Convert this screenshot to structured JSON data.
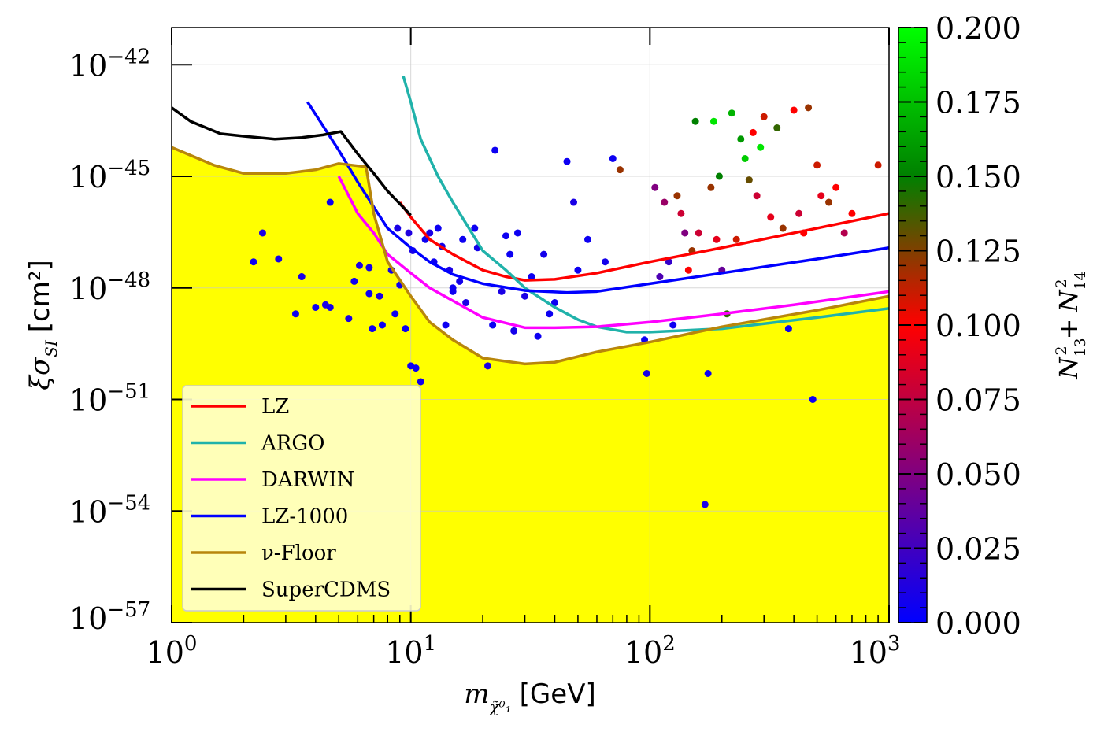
{
  "chart_data": {
    "type": "scatter",
    "title": "",
    "xlabel": {
      "base": "m",
      "sub": "χ̃⁰₁",
      "unit": "[GeV]"
    },
    "ylabel": {
      "base": "ξσ",
      "sub": "SI",
      "unit": "[cm²]"
    },
    "x_scale": "log",
    "y_scale": "log",
    "xlim": [
      1,
      1000
    ],
    "ylim": [
      1e-57,
      1e-41
    ],
    "grid": true,
    "x_ticks": [
      {
        "value": 1,
        "base": "10",
        "exp": "0"
      },
      {
        "value": 10,
        "base": "10",
        "exp": "1"
      },
      {
        "value": 100,
        "base": "10",
        "exp": "2"
      },
      {
        "value": 1000,
        "base": "10",
        "exp": "3"
      }
    ],
    "y_ticks": [
      {
        "value": 1e-57,
        "base": "10",
        "exp": "−57"
      },
      {
        "value": 1e-54,
        "base": "10",
        "exp": "−54"
      },
      {
        "value": 1e-51,
        "base": "10",
        "exp": "−51"
      },
      {
        "value": 1e-48,
        "base": "10",
        "exp": "−48"
      },
      {
        "value": 1e-45,
        "base": "10",
        "exp": "−45"
      },
      {
        "value": 1e-42,
        "base": "10",
        "exp": "−42"
      }
    ],
    "fill": {
      "color": "#ffff00",
      "under": "ν-Floor"
    },
    "legend": {
      "position": "lower-left",
      "entries": [
        {
          "label": "LZ",
          "color": "#ff0000"
        },
        {
          "label": "ARGO",
          "color": "#20b2aa"
        },
        {
          "label": "DARWIN",
          "color": "#ff00ff"
        },
        {
          "label": "LZ-1000",
          "color": "#0000ff"
        },
        {
          "label": "ν-Floor",
          "color": "#b8860b"
        },
        {
          "label": "SuperCDMS",
          "color": "#000000"
        }
      ]
    },
    "series": [
      {
        "name": "LZ",
        "color": "#ff0000",
        "x": [
          9,
          10,
          12,
          15,
          20,
          25,
          30,
          40,
          60,
          100,
          200,
          400,
          1000
        ],
        "y": [
          2e-46,
          8e-47,
          2e-47,
          8e-48,
          3e-48,
          2e-48,
          1.6e-48,
          1.7e-48,
          2.5e-48,
          5e-48,
          1.2e-47,
          3e-47,
          1e-46
        ]
      },
      {
        "name": "ARGO",
        "color": "#20b2aa",
        "x": [
          9.3,
          10,
          11,
          13,
          15,
          18,
          20,
          25,
          30,
          40,
          50,
          60,
          80,
          100,
          200,
          500,
          1000
        ],
        "y": [
          5e-43,
          1e-43,
          1e-44,
          1e-45,
          2e-46,
          3e-47,
          1e-47,
          3e-48,
          1e-48,
          3e-49,
          1.4e-49,
          9e-50,
          6.5e-50,
          6.5e-50,
          8e-50,
          1.6e-49,
          2.8e-49
        ]
      },
      {
        "name": "DARWIN",
        "color": "#ff00ff",
        "x": [
          5,
          6,
          7,
          8,
          10,
          12,
          15,
          20,
          30,
          40,
          60,
          100,
          200,
          400,
          1000
        ],
        "y": [
          1e-45,
          1e-46,
          3e-47,
          8e-48,
          2.5e-48,
          1e-48,
          4.5e-49,
          1.6e-49,
          8.5e-50,
          8.5e-50,
          9e-50,
          1.2e-49,
          2e-49,
          3.5e-49,
          8e-49
        ]
      },
      {
        "name": "LZ-1000",
        "color": "#0000ff",
        "x": [
          3.7,
          5,
          6,
          7,
          8,
          10,
          12,
          15,
          20,
          30,
          45,
          60,
          100,
          200,
          500,
          1000
        ],
        "y": [
          1e-43,
          5e-45,
          7e-46,
          1.5e-46,
          4e-47,
          1.2e-47,
          5e-48,
          2.3e-48,
          1.3e-48,
          8.5e-49,
          7.5e-49,
          8e-49,
          1.3e-48,
          2.5e-48,
          6e-48,
          1.2e-47
        ]
      },
      {
        "name": "ν-Floor",
        "color": "#b8860b",
        "x": [
          1,
          1.5,
          2,
          3,
          4,
          5,
          6.5,
          7,
          8,
          10,
          12,
          15,
          20,
          30,
          40,
          60,
          100,
          200,
          500,
          1000
        ],
        "y": [
          6e-45,
          2e-45,
          1.2e-45,
          1.2e-45,
          1.5e-45,
          2.2e-45,
          1.8e-45,
          1e-46,
          5e-48,
          6e-49,
          1.2e-49,
          4e-50,
          1.3e-50,
          9e-51,
          1e-50,
          1.9e-50,
          3.5e-50,
          9e-50,
          2.5e-49,
          6e-49
        ]
      },
      {
        "name": "SuperCDMS",
        "color": "#000000",
        "x": [
          1,
          1.2,
          1.6,
          2,
          2.7,
          3.5,
          4.3,
          5.1,
          6,
          7,
          8,
          10
        ],
        "y": [
          7e-44,
          3e-44,
          1.4e-44,
          1.2e-44,
          1e-44,
          1.1e-44,
          1.3e-44,
          1.6e-44,
          4e-45,
          1.2e-45,
          4e-46,
          9e-47
        ]
      }
    ],
    "points_xy_c": [
      [
        2.2,
        5e-48,
        0.005
      ],
      [
        2.4,
        3e-47,
        0.01
      ],
      [
        2.8,
        6e-48,
        0.008
      ],
      [
        3.3,
        2e-49,
        0.005
      ],
      [
        3.5,
        2e-48,
        0.01
      ],
      [
        4.0,
        3e-49,
        0.005
      ],
      [
        4.4,
        3.5e-49,
        0.01
      ],
      [
        4.6,
        2e-46,
        0.005
      ],
      [
        4.6,
        3e-49,
        0.008
      ],
      [
        5.5,
        1.5e-49,
        0.01
      ],
      [
        5.8,
        1.5e-48,
        0.005
      ],
      [
        6.1,
        4e-48,
        0.01
      ],
      [
        6.7,
        7e-49,
        0.005
      ],
      [
        6.7,
        3.5e-48,
        0.008
      ],
      [
        6.9,
        8e-50,
        0.005
      ],
      [
        7.4,
        6e-49,
        0.01
      ],
      [
        7.6,
        1e-49,
        0.005
      ],
      [
        8.3,
        3e-48,
        0.008
      ],
      [
        8.6,
        2e-49,
        0.005
      ],
      [
        8.8,
        4e-47,
        0.01
      ],
      [
        9.0,
        1.2e-48,
        0.005
      ],
      [
        9.5,
        8e-50,
        0.005
      ],
      [
        9.8,
        3e-47,
        0.012
      ],
      [
        10.0,
        8e-51,
        0.005
      ],
      [
        10.2,
        1e-47,
        0.01
      ],
      [
        10.5,
        7e-51,
        0.005
      ],
      [
        11.0,
        3e-51,
        0.008
      ],
      [
        11.5,
        2e-47,
        0.005
      ],
      [
        12.0,
        3e-47,
        0.01
      ],
      [
        12.5,
        5e-48,
        0.005
      ],
      [
        13.0,
        4e-47,
        0.005
      ],
      [
        13.5,
        1.3e-47,
        0.008
      ],
      [
        14.0,
        1e-49,
        0.005
      ],
      [
        14.5,
        3e-48,
        0.01
      ],
      [
        15.0,
        1e-48,
        0.005
      ],
      [
        15.0,
        8e-49,
        0.005
      ],
      [
        16.0,
        1.5e-48,
        0.008
      ],
      [
        16.5,
        2e-47,
        0.005
      ],
      [
        17.0,
        4e-49,
        0.01
      ],
      [
        18.5,
        4e-47,
        0.005
      ],
      [
        19.0,
        1.2e-47,
        0.008
      ],
      [
        21.0,
        8e-51,
        0.01
      ],
      [
        22.0,
        1e-49,
        0.005
      ],
      [
        22.5,
        5e-45,
        0.005
      ],
      [
        24.0,
        8e-49,
        0.01
      ],
      [
        25.0,
        2.5e-47,
        0.005
      ],
      [
        26.0,
        8e-48,
        0.005
      ],
      [
        27.0,
        7e-50,
        0.008
      ],
      [
        28.0,
        3e-47,
        0.005
      ],
      [
        30.0,
        6e-49,
        0.01
      ],
      [
        32.0,
        2e-48,
        0.005
      ],
      [
        34.0,
        5e-50,
        0.005
      ],
      [
        36.0,
        8e-48,
        0.008
      ],
      [
        38.0,
        2e-49,
        0.005
      ],
      [
        40.0,
        4e-49,
        0.005
      ],
      [
        45.0,
        2.5e-45,
        0.005
      ],
      [
        48.0,
        2e-46,
        0.01
      ],
      [
        50.0,
        3e-48,
        0.005
      ],
      [
        55.0,
        2e-47,
        0.005
      ],
      [
        65.0,
        5e-48,
        0.008
      ],
      [
        70.0,
        3e-45,
        0.005
      ],
      [
        75.0,
        1.5e-45,
        0.12
      ],
      [
        95.0,
        4e-50,
        0.005
      ],
      [
        97.0,
        5e-51,
        0.01
      ],
      [
        105.0,
        5e-46,
        0.05
      ],
      [
        110.0,
        2e-48,
        0.03
      ],
      [
        115.0,
        2e-46,
        0.06
      ],
      [
        120.0,
        5e-48,
        0.02
      ],
      [
        125.0,
        1e-49,
        0.005
      ],
      [
        130.0,
        3e-46,
        0.12
      ],
      [
        135.0,
        1e-46,
        0.08
      ],
      [
        140.0,
        3e-47,
        0.05
      ],
      [
        145.0,
        3e-48,
        0.1
      ],
      [
        150.0,
        1e-47,
        0.12
      ],
      [
        155.0,
        3e-44,
        0.15
      ],
      [
        160.0,
        3e-47,
        0.08
      ],
      [
        170.0,
        1.5e-54,
        0.01
      ],
      [
        175.0,
        5e-51,
        0.005
      ],
      [
        180.0,
        5e-46,
        0.12
      ],
      [
        185.0,
        3e-44,
        0.19
      ],
      [
        190.0,
        2e-47,
        0.09
      ],
      [
        195.0,
        1e-45,
        0.15
      ],
      [
        200.0,
        3e-48,
        0.04
      ],
      [
        210.0,
        2e-49,
        0.14
      ],
      [
        220.0,
        5e-44,
        0.17
      ],
      [
        230.0,
        2e-47,
        0.11
      ],
      [
        240.0,
        1e-44,
        0.16
      ],
      [
        250.0,
        3e-45,
        0.18
      ],
      [
        260.0,
        8e-46,
        0.13
      ],
      [
        270.0,
        1.5e-44,
        0.1
      ],
      [
        280.0,
        3e-46,
        0.08
      ],
      [
        290.0,
        6e-45,
        0.19
      ],
      [
        300.0,
        4e-44,
        0.11
      ],
      [
        320.0,
        8e-47,
        0.09
      ],
      [
        340.0,
        2e-44,
        0.14
      ],
      [
        360.0,
        4e-47,
        0.12
      ],
      [
        380.0,
        8e-50,
        0.005
      ],
      [
        400.0,
        6e-44,
        0.1
      ],
      [
        420.0,
        1e-46,
        0.08
      ],
      [
        440.0,
        3e-47,
        0.1
      ],
      [
        460.0,
        7e-44,
        0.12
      ],
      [
        480.0,
        1e-51,
        0.005
      ],
      [
        500.0,
        2e-45,
        0.11
      ],
      [
        520.0,
        3e-46,
        0.09
      ],
      [
        560.0,
        2e-46,
        0.12
      ],
      [
        600.0,
        5e-46,
        0.1
      ],
      [
        650.0,
        3e-47,
        0.07
      ],
      [
        700.0,
        1e-46,
        0.1
      ],
      [
        900.0,
        2e-45,
        0.11
      ]
    ],
    "colorbar": {
      "label": "N²₁₃ + N²₁₄",
      "label_parts": {
        "n1": "N",
        "sub1": "13",
        "sup1": "2",
        "plus": "+",
        "n2": "N",
        "sub2": "14",
        "sup2": "2"
      },
      "min": 0.0,
      "max": 0.2,
      "ticks": [
        "0.000",
        "0.025",
        "0.050",
        "0.075",
        "0.100",
        "0.125",
        "0.150",
        "0.175",
        "0.200"
      ],
      "colors": [
        "#0000ff",
        "#800080",
        "#ff0000",
        "#008000",
        "#00ff00"
      ]
    }
  }
}
